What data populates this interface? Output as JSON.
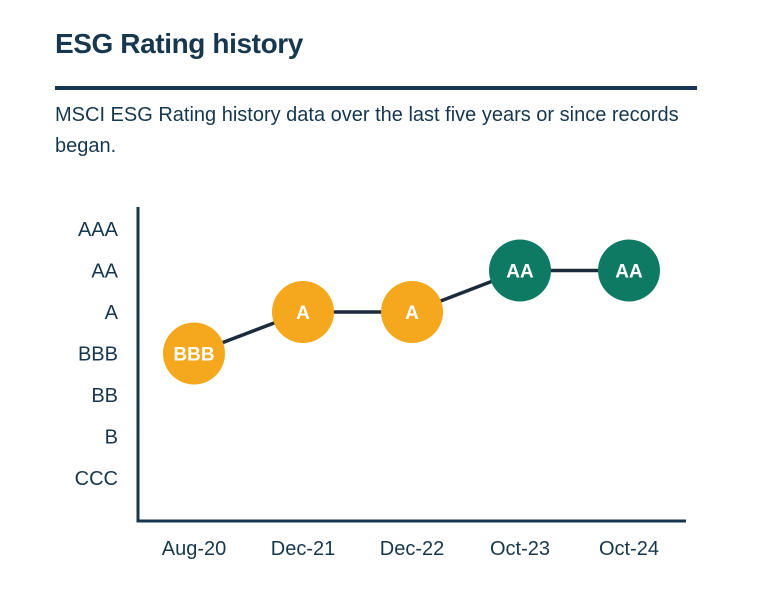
{
  "header": {
    "title": "ESG Rating history",
    "subtitle": "MSCI ESG Rating history data over the last five years or since records began."
  },
  "chart_data": {
    "type": "line",
    "title": "ESG Rating history",
    "categories": [
      "Aug-20",
      "Dec-21",
      "Dec-22",
      "Oct-23",
      "Oct-24"
    ],
    "y_ticks_top_to_bottom": [
      "AAA",
      "AA",
      "A",
      "BBB",
      "BB",
      "B",
      "CCC"
    ],
    "ylim_scale_note": "CCC (lowest) to AAA (highest)",
    "series": [
      {
        "name": "MSCI ESG Rating",
        "ratings": [
          "BBB",
          "A",
          "A",
          "AA",
          "AA"
        ],
        "numeric_values_ccc1_aaa7": [
          4,
          5,
          5,
          6,
          6
        ],
        "point_colors": [
          "#F5A81E",
          "#F5A81E",
          "#F5A81E",
          "#0F7A64",
          "#0F7A64"
        ],
        "point_label_color": "#FFFFFF"
      }
    ],
    "grid": false,
    "legend": false,
    "line_color": "#1C2B3C",
    "axis_color": "#16374E"
  },
  "colors": {
    "navy_text": "#16374E",
    "rating_average_yellow": "#F5A81E",
    "rating_leader_teal": "#0F7A64",
    "background": "#FFFFFF"
  }
}
